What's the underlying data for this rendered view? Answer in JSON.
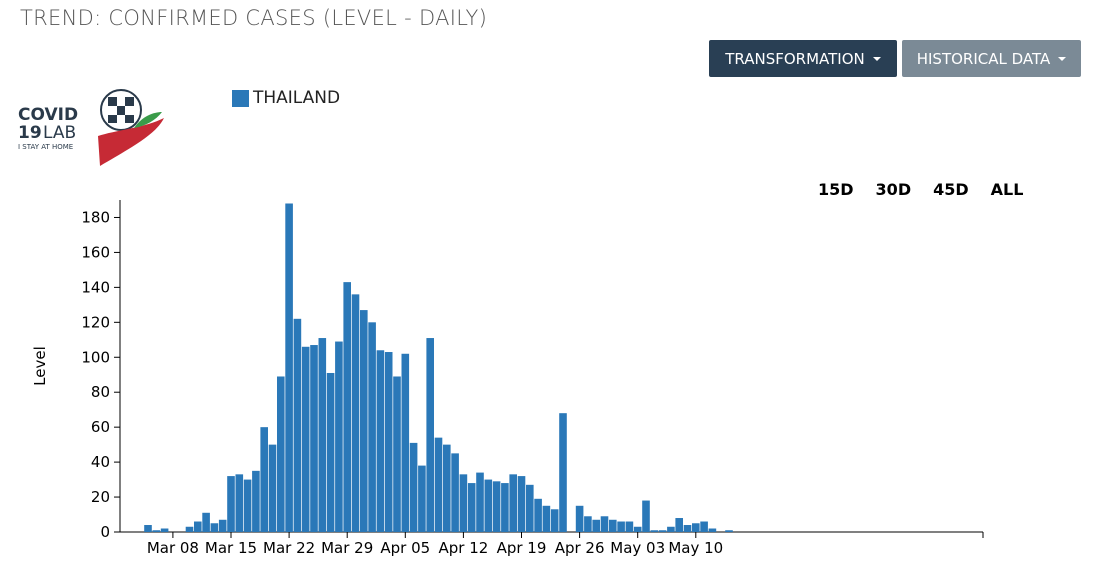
{
  "page": {
    "title": "TREND: CONFIRMED CASES (LEVEL - DAILY)"
  },
  "toolbar": {
    "transformation_label": "TRANSFORMATION",
    "historical_label": "HISTORICAL DATA"
  },
  "logo": {
    "line1": "COVID",
    "line2a": "19",
    "line2b": "LAB",
    "tagline": "I STAY AT HOME"
  },
  "ranges": [
    "15D",
    "30D",
    "45D",
    "ALL"
  ],
  "colors": {
    "bar": "#2a78b8",
    "primary_button": "#293f54",
    "secondary_button": "#7b8a96"
  },
  "chart_data": {
    "type": "bar",
    "ylabel": "Level",
    "xlabel": "",
    "ylim": [
      0,
      190
    ],
    "yticks": [
      0,
      20,
      40,
      60,
      80,
      100,
      120,
      140,
      160,
      180
    ],
    "xtick_labels": [
      "Mar 08",
      "Mar 15",
      "Mar 22",
      "Mar 29",
      "Apr 05",
      "Apr 12",
      "Apr 19",
      "Apr 26",
      "May 03",
      "May 10"
    ],
    "x_start": "Mar 05",
    "legend": [
      "THAILAND"
    ],
    "series": [
      {
        "name": "THAILAND",
        "values": [
          4,
          1,
          2,
          0,
          0,
          3,
          6,
          11,
          5,
          7,
          32,
          33,
          30,
          35,
          60,
          50,
          89,
          188,
          122,
          106,
          107,
          111,
          91,
          109,
          143,
          136,
          127,
          120,
          104,
          103,
          89,
          102,
          51,
          38,
          111,
          54,
          50,
          45,
          33,
          28,
          34,
          30,
          29,
          28,
          33,
          32,
          27,
          19,
          15,
          13,
          68,
          0,
          15,
          9,
          7,
          9,
          7,
          6,
          6,
          3,
          18,
          1,
          1,
          3,
          8,
          4,
          5,
          6,
          2,
          0,
          1
        ]
      }
    ]
  }
}
